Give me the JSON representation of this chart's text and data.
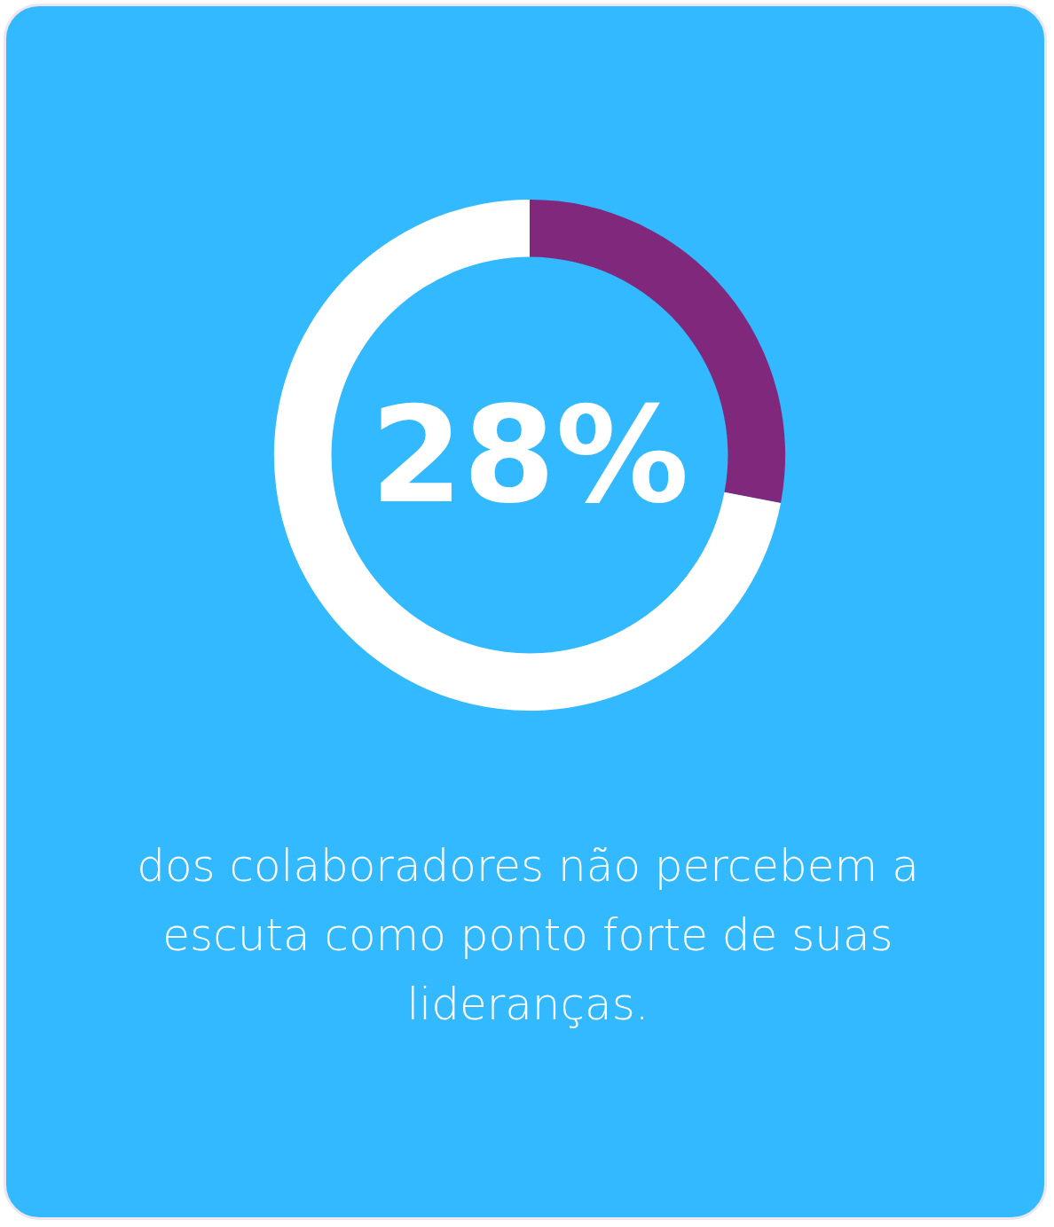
{
  "chart_data": {
    "type": "donut",
    "categories": [
      null,
      null
    ],
    "values": [
      28,
      72
    ],
    "colors": [
      "#7f287c",
      "#ffffff"
    ],
    "value_labels": [
      "28%",
      null
    ],
    "annotations": [
      "dos colaboradores não percebem a escuta como ponto forte de suas lideranças."
    ]
  }
}
